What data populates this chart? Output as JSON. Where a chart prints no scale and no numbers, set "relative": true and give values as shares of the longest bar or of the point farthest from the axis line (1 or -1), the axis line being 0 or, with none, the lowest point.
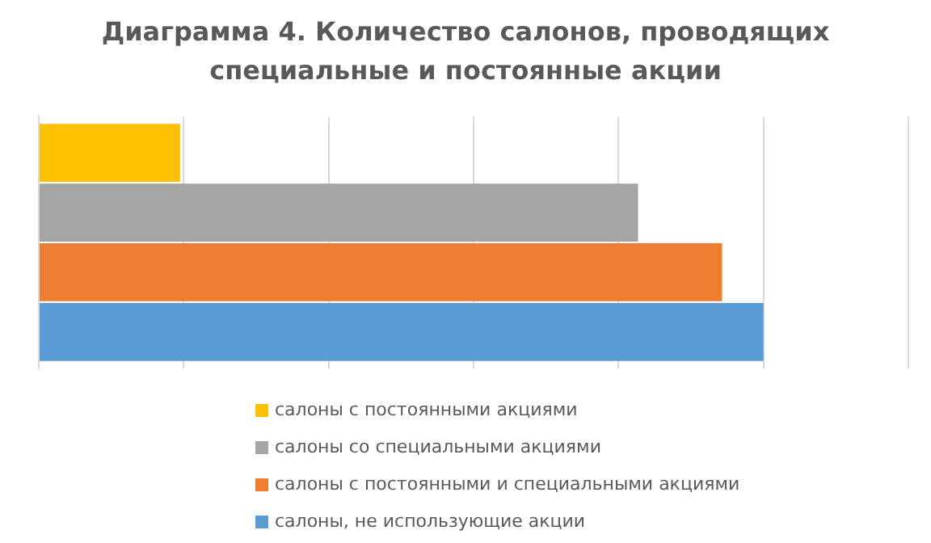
{
  "chart_data": {
    "type": "bar",
    "orientation": "horizontal",
    "relative": true,
    "title": "Диаграмма 4. Количество салонов, проводящих специальные и постоянные акции",
    "categories": [
      null
    ],
    "grid": "x",
    "legend": "bottom",
    "series": [
      {
        "name": "салоны с постоянными акциями",
        "color": "#ffc000",
        "values": [
          0.195
        ]
      },
      {
        "name": "салоны со специальными акциями",
        "color": "#a5a5a5",
        "values": [
          0.827
        ]
      },
      {
        "name": "салоны с постоянными и специальными акциями",
        "color": "#ed7d31",
        "values": [
          0.943
        ]
      },
      {
        "name": "салоны, не использующие акции",
        "color": "#5b9bd5",
        "values": [
          1
        ]
      }
    ]
  }
}
